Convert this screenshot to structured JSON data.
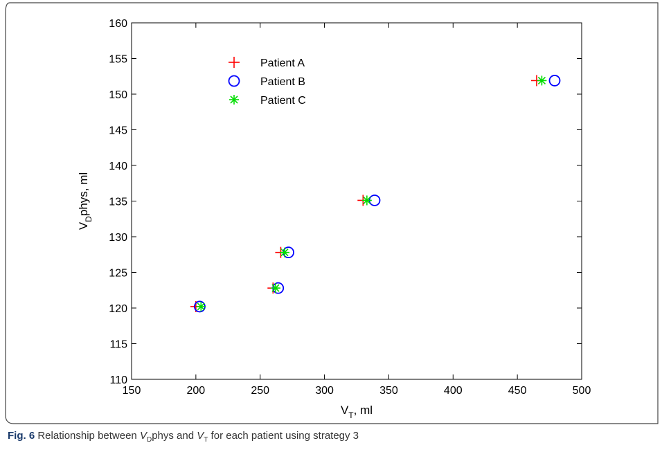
{
  "caption": {
    "label": "Fig. 6",
    "text_prefix": "Relationship between ",
    "var1": "V",
    "var1_sub": "D",
    "var1_suffix": "phys",
    "text_mid": " and ",
    "var2": "V",
    "var2_sub": "T",
    "text_suffix": " for each patient using strategy 3"
  },
  "chart_data": {
    "type": "scatter",
    "xlabel": {
      "main": "V",
      "sub": "T",
      "rest": ", ml"
    },
    "ylabel": {
      "main": "V",
      "sub": "D",
      "rest": "phys, ml"
    },
    "xlim": [
      150,
      500
    ],
    "ylim": [
      110,
      160
    ],
    "xticks": [
      150,
      200,
      250,
      300,
      350,
      400,
      450,
      500
    ],
    "yticks": [
      110,
      115,
      120,
      125,
      130,
      135,
      140,
      145,
      150,
      155,
      160
    ],
    "grid": false,
    "legend_position": "top-left",
    "series": [
      {
        "name": "Patient A",
        "marker": "plus",
        "color": "#ff0000",
        "x": [
          200,
          260,
          266,
          330,
          465
        ],
        "y": [
          120.2,
          122.8,
          127.8,
          135.1,
          151.9
        ]
      },
      {
        "name": "Patient B",
        "marker": "circle",
        "color": "#0000ff",
        "x": [
          203,
          264,
          272,
          339,
          479
        ],
        "y": [
          120.2,
          122.8,
          127.8,
          135.1,
          151.9
        ]
      },
      {
        "name": "Patient C",
        "marker": "star",
        "color": "#00dd00",
        "x": [
          204,
          262,
          269,
          333,
          469
        ],
        "y": [
          120.2,
          122.8,
          127.8,
          135.1,
          151.9
        ]
      }
    ]
  }
}
